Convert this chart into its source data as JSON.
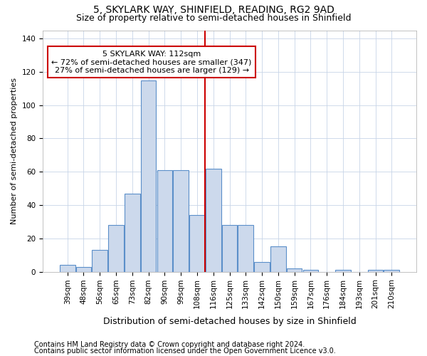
{
  "title": "5, SKYLARK WAY, SHINFIELD, READING, RG2 9AD",
  "subtitle": "Size of property relative to semi-detached houses in Shinfield",
  "xlabel": "Distribution of semi-detached houses by size in Shinfield",
  "ylabel": "Number of semi-detached properties",
  "categories": [
    "39sqm",
    "48sqm",
    "56sqm",
    "65sqm",
    "73sqm",
    "82sqm",
    "90sqm",
    "99sqm",
    "108sqm",
    "116sqm",
    "125sqm",
    "133sqm",
    "142sqm",
    "150sqm",
    "159sqm",
    "167sqm",
    "176sqm",
    "184sqm",
    "193sqm",
    "201sqm",
    "210sqm"
  ],
  "values": [
    4,
    3,
    13,
    28,
    47,
    115,
    61,
    61,
    34,
    62,
    28,
    28,
    6,
    15,
    2,
    1,
    0,
    1,
    0,
    1,
    1
  ],
  "bar_color": "#ccd9ec",
  "bar_edge_color": "#5b8fc9",
  "property_sqm": 112,
  "annotation_text": "5 SKYLARK WAY: 112sqm\n← 72% of semi-detached houses are smaller (347)\n27% of semi-detached houses are larger (129) →",
  "annotation_box_color": "#ffffff",
  "annotation_box_edge": "#cc0000",
  "line_color": "#cc0000",
  "ylim": [
    0,
    145
  ],
  "yticks": [
    0,
    20,
    40,
    60,
    80,
    100,
    120,
    140
  ],
  "background_color": "#ffffff",
  "grid_color": "#c8d4e8",
  "footnote1": "Contains HM Land Registry data © Crown copyright and database right 2024.",
  "footnote2": "Contains public sector information licensed under the Open Government Licence v3.0.",
  "title_fontsize": 10,
  "subtitle_fontsize": 9,
  "xlabel_fontsize": 9,
  "ylabel_fontsize": 8,
  "tick_fontsize": 7.5,
  "annot_fontsize": 8,
  "footnote_fontsize": 7
}
